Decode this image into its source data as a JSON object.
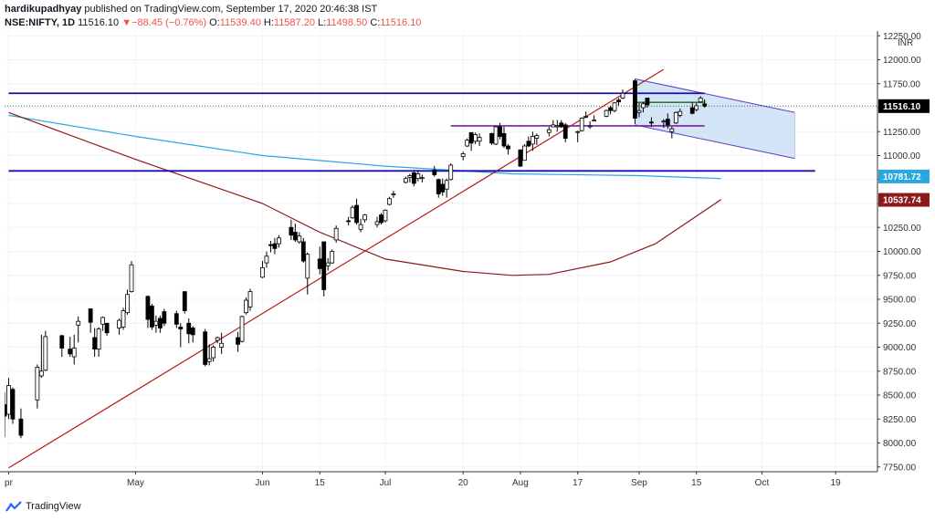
{
  "header": {
    "author": "hardikupadhyay",
    "published": "published on TradingView.com, September 17, 2020 20:46:38 IST",
    "symbol": "NSE:NIFTY, 1D",
    "last": "11516.10",
    "change_arrow": "▼",
    "change": "−88.45 (−0.76%)",
    "o_label": "O:",
    "o_value": "11539.40",
    "h_label": "H:",
    "h_value": "11587.20",
    "l_label": "L:",
    "l_value": "11498.50",
    "c_label": "C:",
    "c_value": "11516.10"
  },
  "footer": {
    "brand": "TradingView",
    "logo_icon": "tradingview-logo-icon"
  },
  "colors": {
    "up_candle": "#ffffff",
    "down_candle": "#000000",
    "trendline": "#b71c1c",
    "ma_long": "#8b1a1a",
    "ma_short": "#29a8e0",
    "hline": "#1a0dab",
    "channel_fill": "#c6dcf5",
    "channel_edge": "#5b3fc4",
    "purple_level": "#7b1fa2",
    "green_level": "#2e7d32",
    "last_price_label": "#000000"
  },
  "chart_data": {
    "type": "candlestick",
    "y_axis_unit": "INR",
    "y_ticks": [
      7750,
      8000,
      8250,
      8500,
      8750,
      9000,
      9250,
      9500,
      9750,
      10000,
      10250,
      10500,
      10750,
      11000,
      11250,
      11500,
      11750,
      12000,
      12250
    ],
    "y_tick_labels": [
      "7750.00",
      "8000.00",
      "8250.00",
      "8500.00",
      "8750.00",
      "9000.00",
      "9250.00",
      "9500.00",
      "9750.00",
      "10000.00",
      "10250.00",
      "10500.00",
      "10750.00",
      "11000.00",
      "11250.00",
      "11500.00",
      "11750.00",
      "12000.00",
      "12250.00"
    ],
    "ylim": [
      7700,
      12300
    ],
    "x_labels": [
      {
        "date": "2020-03-31",
        "label": "pr"
      },
      {
        "date": "2020-05-01",
        "label": "May"
      },
      {
        "date": "2020-06-01",
        "label": "Jun"
      },
      {
        "date": "2020-06-15",
        "label": "15"
      },
      {
        "date": "2020-07-01",
        "label": "Jul"
      },
      {
        "date": "2020-07-20",
        "label": "20"
      },
      {
        "date": "2020-08-03",
        "label": "Aug"
      },
      {
        "date": "2020-08-17",
        "label": "17"
      },
      {
        "date": "2020-09-01",
        "label": "Sep"
      },
      {
        "date": "2020-09-15",
        "label": "15"
      },
      {
        "date": "2020-10-01",
        "label": "Oct"
      },
      {
        "date": "2020-10-19",
        "label": "19"
      }
    ],
    "xlim": [
      "2020-03-30",
      "2020-10-29"
    ],
    "price_labels": [
      {
        "value": 11516.1,
        "text": "11516.10",
        "style": "last"
      },
      {
        "value": 10781.72,
        "text": "10781.72",
        "style": "ma_short"
      },
      {
        "value": 10537.74,
        "text": "10537.74",
        "style": "ma_long"
      }
    ],
    "candles": [
      {
        "d": "2020-03-30",
        "o": 8400,
        "h": 8530,
        "l": 8060,
        "c": 8280
      },
      {
        "d": "2020-03-31",
        "o": 8300,
        "h": 8680,
        "l": 8250,
        "c": 8600
      },
      {
        "d": "2020-04-01",
        "o": 8560,
        "h": 8580,
        "l": 8200,
        "c": 8250
      },
      {
        "d": "2020-04-03",
        "o": 8250,
        "h": 8360,
        "l": 8050,
        "c": 8080
      },
      {
        "d": "2020-04-07",
        "o": 8450,
        "h": 8820,
        "l": 8360,
        "c": 8790
      },
      {
        "d": "2020-04-08",
        "o": 8700,
        "h": 9130,
        "l": 8680,
        "c": 8750
      },
      {
        "d": "2020-04-09",
        "o": 8760,
        "h": 9170,
        "l": 8750,
        "c": 9110
      },
      {
        "d": "2020-04-13",
        "o": 9120,
        "h": 9130,
        "l": 8900,
        "c": 8990
      },
      {
        "d": "2020-04-15",
        "o": 8980,
        "h": 9110,
        "l": 8900,
        "c": 8930
      },
      {
        "d": "2020-04-16",
        "o": 8900,
        "h": 9130,
        "l": 8820,
        "c": 8990
      },
      {
        "d": "2020-04-17",
        "o": 9230,
        "h": 9320,
        "l": 9050,
        "c": 9270
      },
      {
        "d": "2020-04-20",
        "o": 9400,
        "h": 9400,
        "l": 9150,
        "c": 9260
      },
      {
        "d": "2020-04-21",
        "o": 9100,
        "h": 9200,
        "l": 8900,
        "c": 8980
      },
      {
        "d": "2020-04-22",
        "o": 8980,
        "h": 9210,
        "l": 8900,
        "c": 9190
      },
      {
        "d": "2020-04-23",
        "o": 9240,
        "h": 9320,
        "l": 9170,
        "c": 9310
      },
      {
        "d": "2020-04-24",
        "o": 9250,
        "h": 9250,
        "l": 9120,
        "c": 9150
      },
      {
        "d": "2020-04-27",
        "o": 9200,
        "h": 9300,
        "l": 9130,
        "c": 9280
      },
      {
        "d": "2020-04-28",
        "o": 9210,
        "h": 9410,
        "l": 9180,
        "c": 9380
      },
      {
        "d": "2020-04-29",
        "o": 9360,
        "h": 9600,
        "l": 9340,
        "c": 9550
      },
      {
        "d": "2020-04-30",
        "o": 9580,
        "h": 9900,
        "l": 9570,
        "c": 9860
      },
      {
        "d": "2020-05-04",
        "o": 9530,
        "h": 9540,
        "l": 9200,
        "c": 9290
      },
      {
        "d": "2020-05-05",
        "o": 9430,
        "h": 9450,
        "l": 9180,
        "c": 9210
      },
      {
        "d": "2020-05-06",
        "o": 9230,
        "h": 9330,
        "l": 9150,
        "c": 9270
      },
      {
        "d": "2020-05-07",
        "o": 9300,
        "h": 9330,
        "l": 9150,
        "c": 9200
      },
      {
        "d": "2020-05-08",
        "o": 9370,
        "h": 9400,
        "l": 9220,
        "c": 9250
      },
      {
        "d": "2020-05-11",
        "o": 9350,
        "h": 9380,
        "l": 9200,
        "c": 9240
      },
      {
        "d": "2020-05-12",
        "o": 9210,
        "h": 9250,
        "l": 9000,
        "c": 9190
      },
      {
        "d": "2020-05-13",
        "o": 9580,
        "h": 9580,
        "l": 9350,
        "c": 9380
      },
      {
        "d": "2020-05-14",
        "o": 9250,
        "h": 9300,
        "l": 9040,
        "c": 9140
      },
      {
        "d": "2020-05-15",
        "o": 9200,
        "h": 9220,
        "l": 9050,
        "c": 9130
      },
      {
        "d": "2020-05-18",
        "o": 9160,
        "h": 9190,
        "l": 8800,
        "c": 8820
      },
      {
        "d": "2020-05-19",
        "o": 8850,
        "h": 9030,
        "l": 8810,
        "c": 8880
      },
      {
        "d": "2020-05-20",
        "o": 8890,
        "h": 9020,
        "l": 8850,
        "c": 9000
      },
      {
        "d": "2020-05-21",
        "o": 9070,
        "h": 9110,
        "l": 9040,
        "c": 9100
      },
      {
        "d": "2020-05-22",
        "o": 9000,
        "h": 9150,
        "l": 8930,
        "c": 9040
      },
      {
        "d": "2020-05-26",
        "o": 9100,
        "h": 9160,
        "l": 8950,
        "c": 9030
      },
      {
        "d": "2020-05-27",
        "o": 9060,
        "h": 9330,
        "l": 9050,
        "c": 9320
      },
      {
        "d": "2020-05-28",
        "o": 9360,
        "h": 9520,
        "l": 9340,
        "c": 9490
      },
      {
        "d": "2020-05-29",
        "o": 9420,
        "h": 9610,
        "l": 9380,
        "c": 9580
      },
      {
        "d": "2020-06-01",
        "o": 9730,
        "h": 9900,
        "l": 9720,
        "c": 9830
      },
      {
        "d": "2020-06-02",
        "o": 9880,
        "h": 10000,
        "l": 9830,
        "c": 9950
      },
      {
        "d": "2020-06-03",
        "o": 10070,
        "h": 10110,
        "l": 9990,
        "c": 10060
      },
      {
        "d": "2020-06-04",
        "o": 10080,
        "h": 10140,
        "l": 9970,
        "c": 10030
      },
      {
        "d": "2020-06-05",
        "o": 10080,
        "h": 10170,
        "l": 10040,
        "c": 10140
      },
      {
        "d": "2020-06-08",
        "o": 10250,
        "h": 10330,
        "l": 10120,
        "c": 10170
      },
      {
        "d": "2020-06-09",
        "o": 10200,
        "h": 10290,
        "l": 10100,
        "c": 10120
      },
      {
        "d": "2020-06-10",
        "o": 10100,
        "h": 10200,
        "l": 10080,
        "c": 10160
      },
      {
        "d": "2020-06-11",
        "o": 10100,
        "h": 10140,
        "l": 9880,
        "c": 9900
      },
      {
        "d": "2020-06-12",
        "o": 9720,
        "h": 9990,
        "l": 9550,
        "c": 9970
      },
      {
        "d": "2020-06-15",
        "o": 9920,
        "h": 10050,
        "l": 9760,
        "c": 9820
      },
      {
        "d": "2020-06-16",
        "o": 10100,
        "h": 10100,
        "l": 9530,
        "c": 9600
      },
      {
        "d": "2020-06-17",
        "o": 9850,
        "h": 9930,
        "l": 9800,
        "c": 9880
      },
      {
        "d": "2020-06-18",
        "o": 9880,
        "h": 10020,
        "l": 9870,
        "c": 10000
      },
      {
        "d": "2020-06-19",
        "o": 10120,
        "h": 10270,
        "l": 10090,
        "c": 10240
      },
      {
        "d": "2020-06-22",
        "o": 10320,
        "h": 10360,
        "l": 10270,
        "c": 10310
      },
      {
        "d": "2020-06-23",
        "o": 10350,
        "h": 10480,
        "l": 10340,
        "c": 10460
      },
      {
        "d": "2020-06-24",
        "o": 10480,
        "h": 10550,
        "l": 10280,
        "c": 10300
      },
      {
        "d": "2020-06-25",
        "o": 10230,
        "h": 10340,
        "l": 10200,
        "c": 10280
      },
      {
        "d": "2020-06-26",
        "o": 10330,
        "h": 10390,
        "l": 10300,
        "c": 10380
      },
      {
        "d": "2020-06-29",
        "o": 10280,
        "h": 10360,
        "l": 10250,
        "c": 10310
      },
      {
        "d": "2020-06-30",
        "o": 10380,
        "h": 10400,
        "l": 10280,
        "c": 10300
      },
      {
        "d": "2020-07-01",
        "o": 10320,
        "h": 10440,
        "l": 10300,
        "c": 10430
      },
      {
        "d": "2020-07-02",
        "o": 10490,
        "h": 10570,
        "l": 10480,
        "c": 10550
      },
      {
        "d": "2020-07-03",
        "o": 10600,
        "h": 10630,
        "l": 10560,
        "c": 10600
      },
      {
        "d": "2020-07-06",
        "o": 10720,
        "h": 10780,
        "l": 10710,
        "c": 10760
      },
      {
        "d": "2020-07-07",
        "o": 10770,
        "h": 10810,
        "l": 10720,
        "c": 10790
      },
      {
        "d": "2020-07-08",
        "o": 10820,
        "h": 10850,
        "l": 10680,
        "c": 10710
      },
      {
        "d": "2020-07-09",
        "o": 10760,
        "h": 10850,
        "l": 10730,
        "c": 10810
      },
      {
        "d": "2020-07-10",
        "o": 10760,
        "h": 10800,
        "l": 10720,
        "c": 10770
      },
      {
        "d": "2020-07-13",
        "o": 10850,
        "h": 10890,
        "l": 10780,
        "c": 10800
      },
      {
        "d": "2020-07-14",
        "o": 10750,
        "h": 10760,
        "l": 10560,
        "c": 10600
      },
      {
        "d": "2020-07-15",
        "o": 10700,
        "h": 10760,
        "l": 10580,
        "c": 10620
      },
      {
        "d": "2020-07-16",
        "o": 10650,
        "h": 10760,
        "l": 10560,
        "c": 10740
      },
      {
        "d": "2020-07-17",
        "o": 10750,
        "h": 10920,
        "l": 10740,
        "c": 10900
      },
      {
        "d": "2020-07-20",
        "o": 10990,
        "h": 11040,
        "l": 10950,
        "c": 11020
      },
      {
        "d": "2020-07-21",
        "o": 11100,
        "h": 11180,
        "l": 11090,
        "c": 11160
      },
      {
        "d": "2020-07-22",
        "o": 11240,
        "h": 11240,
        "l": 11050,
        "c": 11130
      },
      {
        "d": "2020-07-23",
        "o": 11150,
        "h": 11240,
        "l": 11120,
        "c": 11220
      },
      {
        "d": "2020-07-24",
        "o": 11150,
        "h": 11230,
        "l": 11100,
        "c": 11190
      },
      {
        "d": "2020-07-27",
        "o": 11230,
        "h": 11240,
        "l": 11110,
        "c": 11130
      },
      {
        "d": "2020-07-28",
        "o": 11120,
        "h": 11310,
        "l": 11110,
        "c": 11300
      },
      {
        "d": "2020-07-29",
        "o": 11300,
        "h": 11340,
        "l": 11170,
        "c": 11200
      },
      {
        "d": "2020-07-30",
        "o": 11230,
        "h": 11300,
        "l": 11080,
        "c": 11100
      },
      {
        "d": "2020-07-31",
        "o": 11100,
        "h": 11120,
        "l": 11010,
        "c": 11070
      },
      {
        "d": "2020-08-03",
        "o": 11060,
        "h": 11060,
        "l": 10880,
        "c": 10890
      },
      {
        "d": "2020-08-04",
        "o": 10950,
        "h": 11120,
        "l": 10950,
        "c": 11100
      },
      {
        "d": "2020-08-05",
        "o": 11150,
        "h": 11200,
        "l": 11090,
        "c": 11100
      },
      {
        "d": "2020-08-06",
        "o": 11120,
        "h": 11250,
        "l": 11050,
        "c": 11200
      },
      {
        "d": "2020-08-07",
        "o": 11180,
        "h": 11230,
        "l": 11110,
        "c": 11210
      },
      {
        "d": "2020-08-10",
        "o": 11240,
        "h": 11300,
        "l": 11200,
        "c": 11270
      },
      {
        "d": "2020-08-11",
        "o": 11300,
        "h": 11370,
        "l": 11300,
        "c": 11320
      },
      {
        "d": "2020-08-12",
        "o": 11300,
        "h": 11370,
        "l": 11250,
        "c": 11310
      },
      {
        "d": "2020-08-13",
        "o": 11340,
        "h": 11370,
        "l": 11290,
        "c": 11300
      },
      {
        "d": "2020-08-14",
        "o": 11320,
        "h": 11340,
        "l": 11140,
        "c": 11180
      },
      {
        "d": "2020-08-17",
        "o": 11250,
        "h": 11260,
        "l": 11140,
        "c": 11250
      },
      {
        "d": "2020-08-18",
        "o": 11260,
        "h": 11400,
        "l": 11250,
        "c": 11390
      },
      {
        "d": "2020-08-19",
        "o": 11410,
        "h": 11460,
        "l": 11390,
        "c": 11410
      },
      {
        "d": "2020-08-20",
        "o": 11310,
        "h": 11360,
        "l": 11280,
        "c": 11310
      },
      {
        "d": "2020-08-21",
        "o": 11370,
        "h": 11420,
        "l": 11360,
        "c": 11370
      },
      {
        "d": "2020-08-24",
        "o": 11410,
        "h": 11480,
        "l": 11400,
        "c": 11470
      },
      {
        "d": "2020-08-25",
        "o": 11500,
        "h": 11520,
        "l": 11430,
        "c": 11470
      },
      {
        "d": "2020-08-26",
        "o": 11470,
        "h": 11560,
        "l": 11450,
        "c": 11550
      },
      {
        "d": "2020-08-27",
        "o": 11580,
        "h": 11600,
        "l": 11520,
        "c": 11560
      },
      {
        "d": "2020-08-28",
        "o": 11600,
        "h": 11690,
        "l": 11590,
        "c": 11650
      },
      {
        "d": "2020-08-31",
        "o": 11780,
        "h": 11800,
        "l": 11330,
        "c": 11390
      },
      {
        "d": "2020-09-01",
        "o": 11450,
        "h": 11550,
        "l": 11400,
        "c": 11470
      },
      {
        "d": "2020-09-02",
        "o": 11500,
        "h": 11560,
        "l": 11450,
        "c": 11540
      },
      {
        "d": "2020-09-03",
        "o": 11600,
        "h": 11600,
        "l": 11500,
        "c": 11530
      },
      {
        "d": "2020-09-04",
        "o": 11350,
        "h": 11400,
        "l": 11300,
        "c": 11340
      },
      {
        "d": "2020-09-07",
        "o": 11360,
        "h": 11380,
        "l": 11290,
        "c": 11360
      },
      {
        "d": "2020-09-08",
        "o": 11380,
        "h": 11440,
        "l": 11280,
        "c": 11320
      },
      {
        "d": "2020-09-09",
        "o": 11250,
        "h": 11300,
        "l": 11180,
        "c": 11280
      },
      {
        "d": "2020-09-10",
        "o": 11340,
        "h": 11460,
        "l": 11330,
        "c": 11450
      },
      {
        "d": "2020-09-11",
        "o": 11420,
        "h": 11490,
        "l": 11400,
        "c": 11460
      },
      {
        "d": "2020-09-14",
        "o": 11500,
        "h": 11560,
        "l": 11430,
        "c": 11440
      },
      {
        "d": "2020-09-15",
        "o": 11480,
        "h": 11550,
        "l": 11460,
        "c": 11520
      },
      {
        "d": "2020-09-16",
        "o": 11560,
        "h": 11620,
        "l": 11550,
        "c": 11600
      },
      {
        "d": "2020-09-17",
        "o": 11539.4,
        "h": 11587.2,
        "l": 11498.5,
        "c": 11516.1
      }
    ],
    "ma_short": {
      "name": "",
      "points": [
        [
          "2020-03-31",
          11420
        ],
        [
          "2020-05-01",
          11200
        ],
        [
          "2020-06-01",
          11000
        ],
        [
          "2020-07-01",
          10890
        ],
        [
          "2020-08-01",
          10810
        ],
        [
          "2020-09-01",
          10790
        ],
        [
          "2020-09-21",
          10760
        ]
      ]
    },
    "ma_long": {
      "name": "",
      "points": [
        [
          "2020-03-31",
          11450
        ],
        [
          "2020-05-01",
          10960
        ],
        [
          "2020-06-01",
          10500
        ],
        [
          "2020-06-15",
          10200
        ],
        [
          "2020-07-01",
          9920
        ],
        [
          "2020-07-20",
          9790
        ],
        [
          "2020-08-01",
          9750
        ],
        [
          "2020-08-10",
          9760
        ],
        [
          "2020-08-25",
          9890
        ],
        [
          "2020-09-05",
          10080
        ],
        [
          "2020-09-21",
          10540
        ]
      ]
    },
    "trendline": {
      "from": [
        "2020-03-31",
        7740
      ],
      "to": [
        "2020-09-07",
        11900
      ]
    },
    "horizontal_lines": [
      {
        "value": 11650,
        "from": "2020-03-31",
        "to": "2020-09-17"
      },
      {
        "value": 10840,
        "from": "2020-03-31",
        "to": "2020-10-14"
      }
    ],
    "purple_level": {
      "value": 11310,
      "from": "2020-07-17",
      "to": "2020-09-17"
    },
    "green_level": {
      "value": 11555,
      "from": "2020-08-31",
      "to": "2020-09-17"
    },
    "channel": {
      "upper": [
        [
          "2020-08-31",
          11800
        ],
        [
          "2020-10-09",
          11450
        ]
      ],
      "lower": [
        [
          "2020-08-31",
          11320
        ],
        [
          "2020-10-09",
          10970
        ]
      ]
    },
    "dotted_last_price": 11516.1
  }
}
